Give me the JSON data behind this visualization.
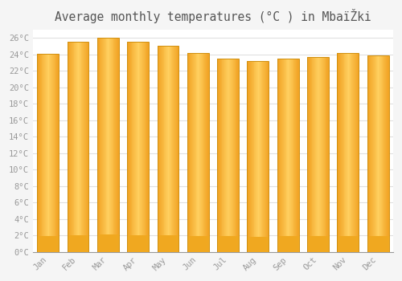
{
  "title": "Average monthly temperatures (°C ) in MbaïŽki",
  "months": [
    "Jan",
    "Feb",
    "Mar",
    "Apr",
    "May",
    "Jun",
    "Jul",
    "Aug",
    "Sep",
    "Oct",
    "Nov",
    "Dec"
  ],
  "values": [
    24.1,
    25.6,
    26.0,
    25.6,
    25.1,
    24.2,
    23.5,
    23.2,
    23.5,
    23.7,
    24.2,
    23.9
  ],
  "bar_color_center": "#FFD060",
  "bar_color_edge": "#F0A020",
  "bar_bottom_color": "#F0A820",
  "ylim": [
    0,
    27
  ],
  "ytick_max": 26,
  "ytick_step": 2,
  "background_color": "#f5f5f5",
  "plot_bg_color": "#ffffff",
  "grid_color": "#e0e0e0",
  "tick_color": "#999999",
  "title_color": "#555555",
  "title_fontsize": 10.5,
  "bar_width": 0.72
}
